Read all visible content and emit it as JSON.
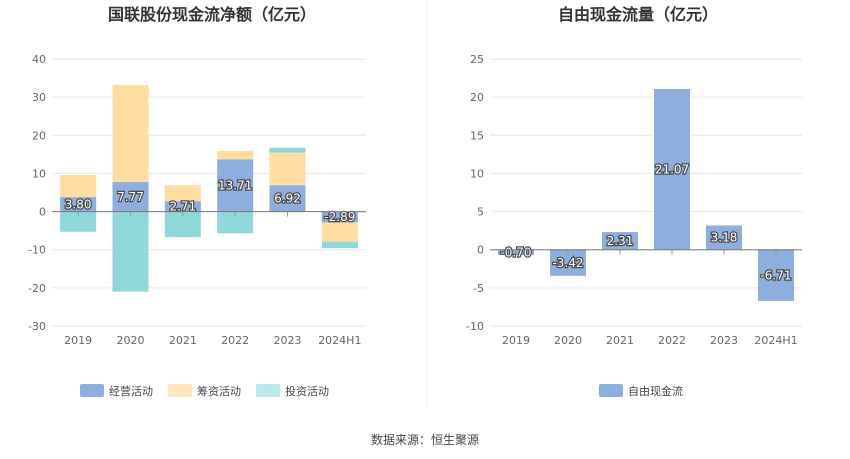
{
  "source": "数据来源：恒生聚源",
  "colors": {
    "operating": "#8eaedd",
    "financing": "#ffdca0",
    "investing": "#8fd8da",
    "fcf": "#8eaedd",
    "legend_investing": "#bde8ea",
    "legend_financing": "#ffe6bd"
  },
  "chart_data": [
    {
      "type": "bar",
      "stacked": true,
      "title": "国联股份现金流净额（亿元）",
      "categories": [
        "2019",
        "2020",
        "2021",
        "2022",
        "2023",
        "2024H1"
      ],
      "yticks": [
        "40",
        "30",
        "20",
        "10",
        "0",
        "-10",
        "-20",
        "-30"
      ],
      "ylim": [
        -30,
        40
      ],
      "series": [
        {
          "key": "operating",
          "name": "经营活动",
          "values": [
            3.8,
            7.77,
            2.71,
            13.71,
            6.92,
            -2.89
          ]
        },
        {
          "key": "financing",
          "name": "筹资活动",
          "values": [
            5.8,
            25.4,
            4.2,
            2.2,
            8.5,
            -5.0
          ]
        },
        {
          "key": "investing",
          "name": "投资活动",
          "values": [
            -5.3,
            -21.0,
            -6.7,
            -5.7,
            1.3,
            -1.7
          ]
        }
      ],
      "data_labels": [
        "3.80",
        "7.77",
        "2.71",
        "13.71",
        "6.92",
        "-2.89"
      ],
      "legend": [
        "经营活动",
        "筹资活动",
        "投资活动"
      ]
    },
    {
      "type": "bar",
      "title": "自由现金流量（亿元）",
      "categories": [
        "2019",
        "2020",
        "2021",
        "2022",
        "2023",
        "2024H1"
      ],
      "yticks": [
        "25",
        "20",
        "15",
        "10",
        "5",
        "0",
        "-5",
        "-10"
      ],
      "ylim": [
        -10,
        25
      ],
      "series": [
        {
          "key": "fcf",
          "name": "自由现金流",
          "values": [
            -0.7,
            -3.42,
            2.31,
            21.07,
            3.18,
            -6.71
          ]
        }
      ],
      "data_labels": [
        "-0.70",
        "-3.42",
        "2.31",
        "21.07",
        "3.18",
        "-6.71"
      ],
      "legend": [
        "自由现金流"
      ]
    }
  ]
}
